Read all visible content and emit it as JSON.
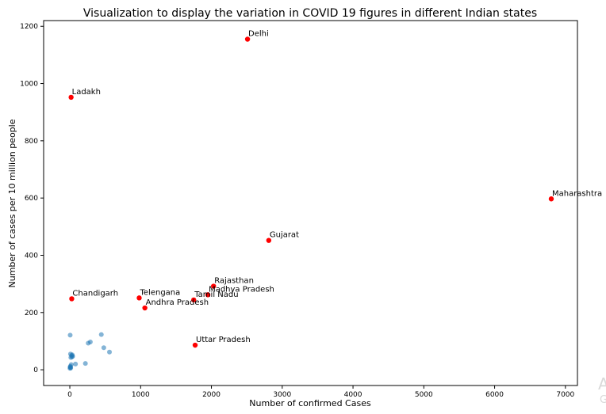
{
  "chart_data": {
    "type": "scatter",
    "title": "Visualization to display the variation in COVID 19 figures in different Indian states",
    "xlabel": "Number of confirmed Cases",
    "ylabel": "Number of cases per 10 million people",
    "xlim": [
      -370,
      7170
    ],
    "ylim": [
      -55,
      1220
    ],
    "xticks": [
      0,
      1000,
      2000,
      3000,
      4000,
      5000,
      6000,
      7000
    ],
    "yticks": [
      0,
      200,
      400,
      600,
      800,
      1000,
      1200
    ],
    "grid": false,
    "series": [
      {
        "color": "#ff0000",
        "points": [
          {
            "label": "Delhi",
            "x": 2510,
            "y": 1155
          },
          {
            "label": "Ladakh",
            "x": 18,
            "y": 952
          },
          {
            "label": "Maharashtra",
            "x": 6800,
            "y": 597
          },
          {
            "label": "Gujarat",
            "x": 2810,
            "y": 452
          },
          {
            "label": "Rajasthan",
            "x": 2030,
            "y": 292
          },
          {
            "label": "Madhya Pradesh",
            "x": 1950,
            "y": 262
          },
          {
            "label": "Tamil Nadu",
            "x": 1750,
            "y": 244
          },
          {
            "label": "Telengana",
            "x": 980,
            "y": 251
          },
          {
            "label": "Andhra Pradesh",
            "x": 1060,
            "y": 216
          },
          {
            "label": "Chandigarh",
            "x": 27,
            "y": 248
          },
          {
            "label": "Uttar Pradesh",
            "x": 1770,
            "y": 86
          }
        ]
      },
      {
        "color": "#1f77b4",
        "points": [
          {
            "x": 5,
            "y": 121
          },
          {
            "x": 445,
            "y": 123
          },
          {
            "x": 480,
            "y": 77
          },
          {
            "x": 560,
            "y": 62
          },
          {
            "x": 290,
            "y": 97
          },
          {
            "x": 260,
            "y": 93
          },
          {
            "x": 220,
            "y": 22
          },
          {
            "x": 80,
            "y": 20
          },
          {
            "x": 10,
            "y": 55
          },
          {
            "x": 25,
            "y": 50
          },
          {
            "x": 35,
            "y": 52
          },
          {
            "x": 15,
            "y": 43
          },
          {
            "x": 30,
            "y": 45
          },
          {
            "x": 40,
            "y": 47
          },
          {
            "x": 20,
            "y": 18
          },
          {
            "x": 5,
            "y": 10
          },
          {
            "x": 10,
            "y": 8
          },
          {
            "x": 2,
            "y": 5
          },
          {
            "x": 8,
            "y": 12
          },
          {
            "x": 12,
            "y": 6
          }
        ]
      }
    ]
  },
  "watermark": {
    "line1": "A",
    "line2": "G"
  }
}
